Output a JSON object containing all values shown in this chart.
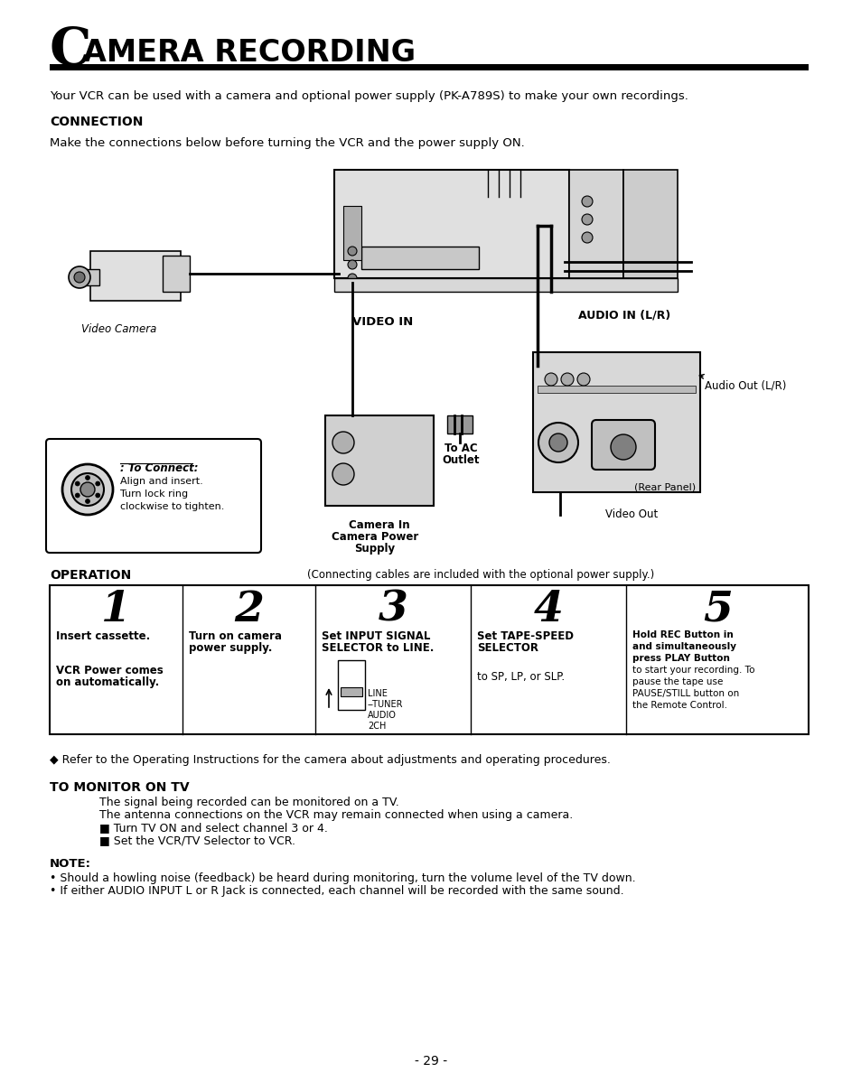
{
  "bg_color": "#ffffff",
  "title_big_C": "C",
  "title_rest": "AMERA RECORDING",
  "line1": "Your VCR can be used with a camera and optional power supply (PK-A789S) to make your own recordings.",
  "connection_label": "CONNECTION",
  "connection_text": "Make the connections below before turning the VCR and the power supply ON.",
  "operation_label": "OPERATION",
  "operation_note": "(Connecting cables are included with the optional power supply.)",
  "refer_line": "◆ Refer to the Operating Instructions for the camera about adjustments and operating procedures.",
  "monitor_header": "TO MONITOR ON TV",
  "monitor_lines": [
    "The signal being recorded can be monitored on a TV.",
    "The antenna connections on the VCR may remain connected when using a camera.",
    "■ Turn TV ON and select channel 3 or 4.",
    "■ Set the VCR/TV Selector to VCR."
  ],
  "note_header": "NOTE:",
  "note_lines": [
    "• Should a howling noise (feedback) be heard during monitoring, turn the volume level of the TV down.",
    "• If either AUDIO INPUT L or R Jack is connected, each channel will be recorded with the same sound."
  ],
  "page_number": "- 29 -"
}
